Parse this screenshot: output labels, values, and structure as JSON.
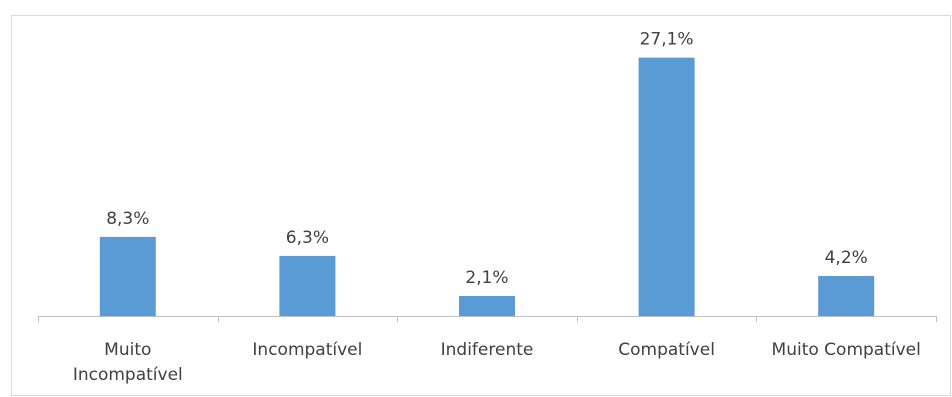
{
  "chart_data": {
    "type": "bar",
    "title": "",
    "xlabel": "",
    "ylabel": "",
    "categories": [
      [
        "Muito",
        "Incompatível"
      ],
      [
        "Incompatível"
      ],
      [
        "Indiferente"
      ],
      [
        "Compatível"
      ],
      [
        "Muito Compatível"
      ]
    ],
    "values": [
      8.3,
      6.3,
      2.1,
      27.1,
      4.2
    ],
    "data_labels": [
      "8,3%",
      "6,3%",
      "2,1%",
      "27,1%",
      "4,2%"
    ],
    "ylim": [
      0,
      30
    ],
    "grid": false,
    "legend": "none",
    "bar_color": "#5b9bd5",
    "axis_color": "#bfbfbf",
    "text_color": "#404040"
  }
}
